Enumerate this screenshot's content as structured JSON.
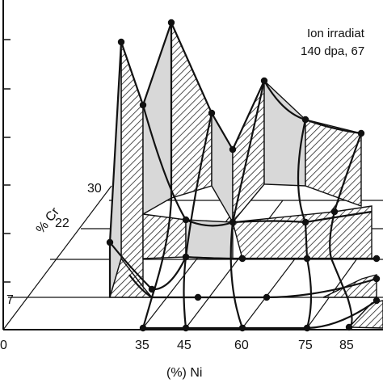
{
  "chart_data": {
    "type": "surface-3d",
    "annotation": {
      "line1": "Ion irradiat",
      "line2": "140 dpa, 67"
    },
    "x_axis": {
      "label": "(%) Ni",
      "ticks": [
        "0",
        "35",
        "45",
        "60",
        "75",
        "85"
      ]
    },
    "cr_axis": {
      "label": "% Cr",
      "ticks": [
        "30",
        "22",
        "7"
      ]
    },
    "nickel_values": [
      35,
      45,
      60,
      75,
      85
    ],
    "cr_values": [
      7,
      22,
      30
    ],
    "hatch_color": "#222222",
    "shade_color": "#d8d8d8"
  }
}
